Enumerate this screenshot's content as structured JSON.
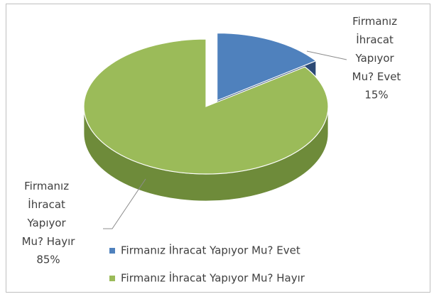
{
  "chart_data": {
    "type": "pie",
    "categories": [
      "Firmanız İhracat Yapıyor Mu? Evet",
      "Firmanız İhracat Yapıyor Mu? Hayır"
    ],
    "values": [
      15,
      85
    ],
    "value_labels": [
      "15%",
      "85%"
    ],
    "colors": [
      "#4f81bd",
      "#9bbb59"
    ],
    "side_colors": [
      "#2c4a75",
      "#6e8b3a"
    ],
    "legend": "bottom"
  }
}
